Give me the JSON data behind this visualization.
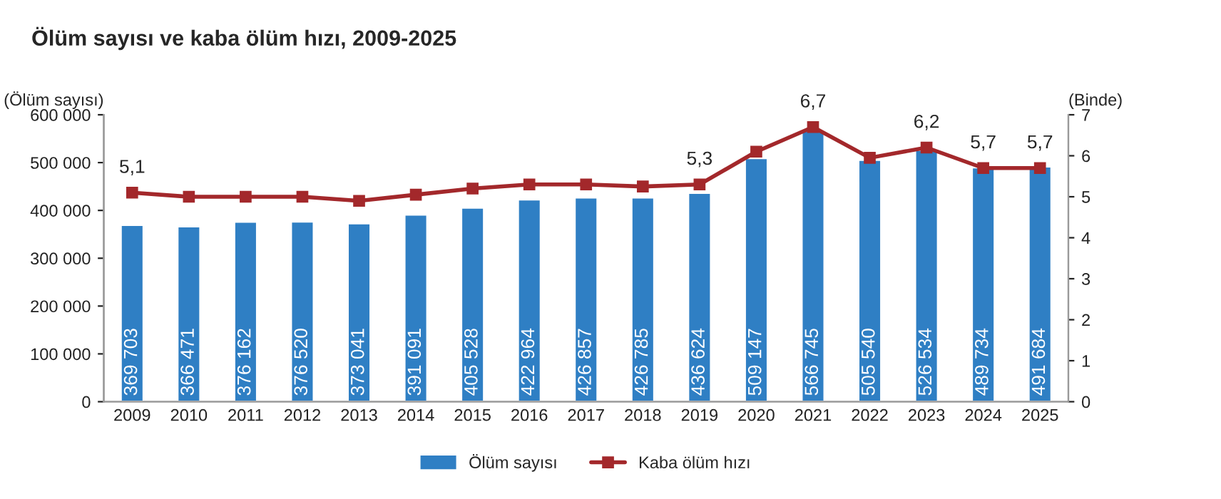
{
  "chart_data": {
    "type": "bar",
    "title": "Ölüm sayısı ve kaba ölüm hızı, 2009-2025",
    "ylabel": "(Ölüm sayısı)",
    "y2label": "(Binde)",
    "categories": [
      "2009",
      "2010",
      "2011",
      "2012",
      "2013",
      "2014",
      "2015",
      "2016",
      "2017",
      "2018",
      "2019",
      "2020",
      "2021",
      "2022",
      "2023",
      "2024",
      "2025"
    ],
    "series": [
      {
        "name": "Ölüm sayısı",
        "color": "#2f7fc4",
        "values": [
          369703,
          366471,
          376162,
          376520,
          373041,
          391091,
          405528,
          422964,
          426857,
          426785,
          436624,
          509147,
          566745,
          505540,
          526534,
          489734,
          491684
        ],
        "value_labels": [
          "369 703",
          "366 471",
          "376 162",
          "376 520",
          "373 041",
          "391 091",
          "405 528",
          "422 964",
          "426 857",
          "426 785",
          "436 624",
          "509 147",
          "566 745",
          "505 540",
          "526 534",
          "489 734",
          "491 684"
        ]
      },
      {
        "name": "Kaba ölüm hızı",
        "type": "line",
        "axis": "y2",
        "color": "#a3282b",
        "marker": "square",
        "values": [
          5.1,
          5.0,
          5.0,
          5.0,
          4.9,
          5.05,
          5.2,
          5.3,
          5.3,
          5.25,
          5.3,
          6.1,
          6.7,
          5.95,
          6.2,
          5.7,
          5.7
        ],
        "value_labels": [
          "5,1",
          null,
          null,
          null,
          null,
          null,
          null,
          null,
          null,
          null,
          "5,3",
          null,
          "6,7",
          null,
          "6,2",
          "5,7",
          "5,7"
        ]
      }
    ],
    "ylim": [
      0,
      600000
    ],
    "yticks": [
      {
        "value": 0,
        "label": "0"
      },
      {
        "value": 100000,
        "label": "100 000"
      },
      {
        "value": 200000,
        "label": "200 000"
      },
      {
        "value": 300000,
        "label": "300 000"
      },
      {
        "value": 400000,
        "label": "400 000"
      },
      {
        "value": 500000,
        "label": "500 000"
      },
      {
        "value": 600000,
        "label": "600 000"
      }
    ],
    "y2lim": [
      0,
      7
    ],
    "y2ticks": [
      0,
      1,
      2,
      3,
      4,
      5,
      6,
      7
    ],
    "legend": "bottom",
    "grid": false
  }
}
